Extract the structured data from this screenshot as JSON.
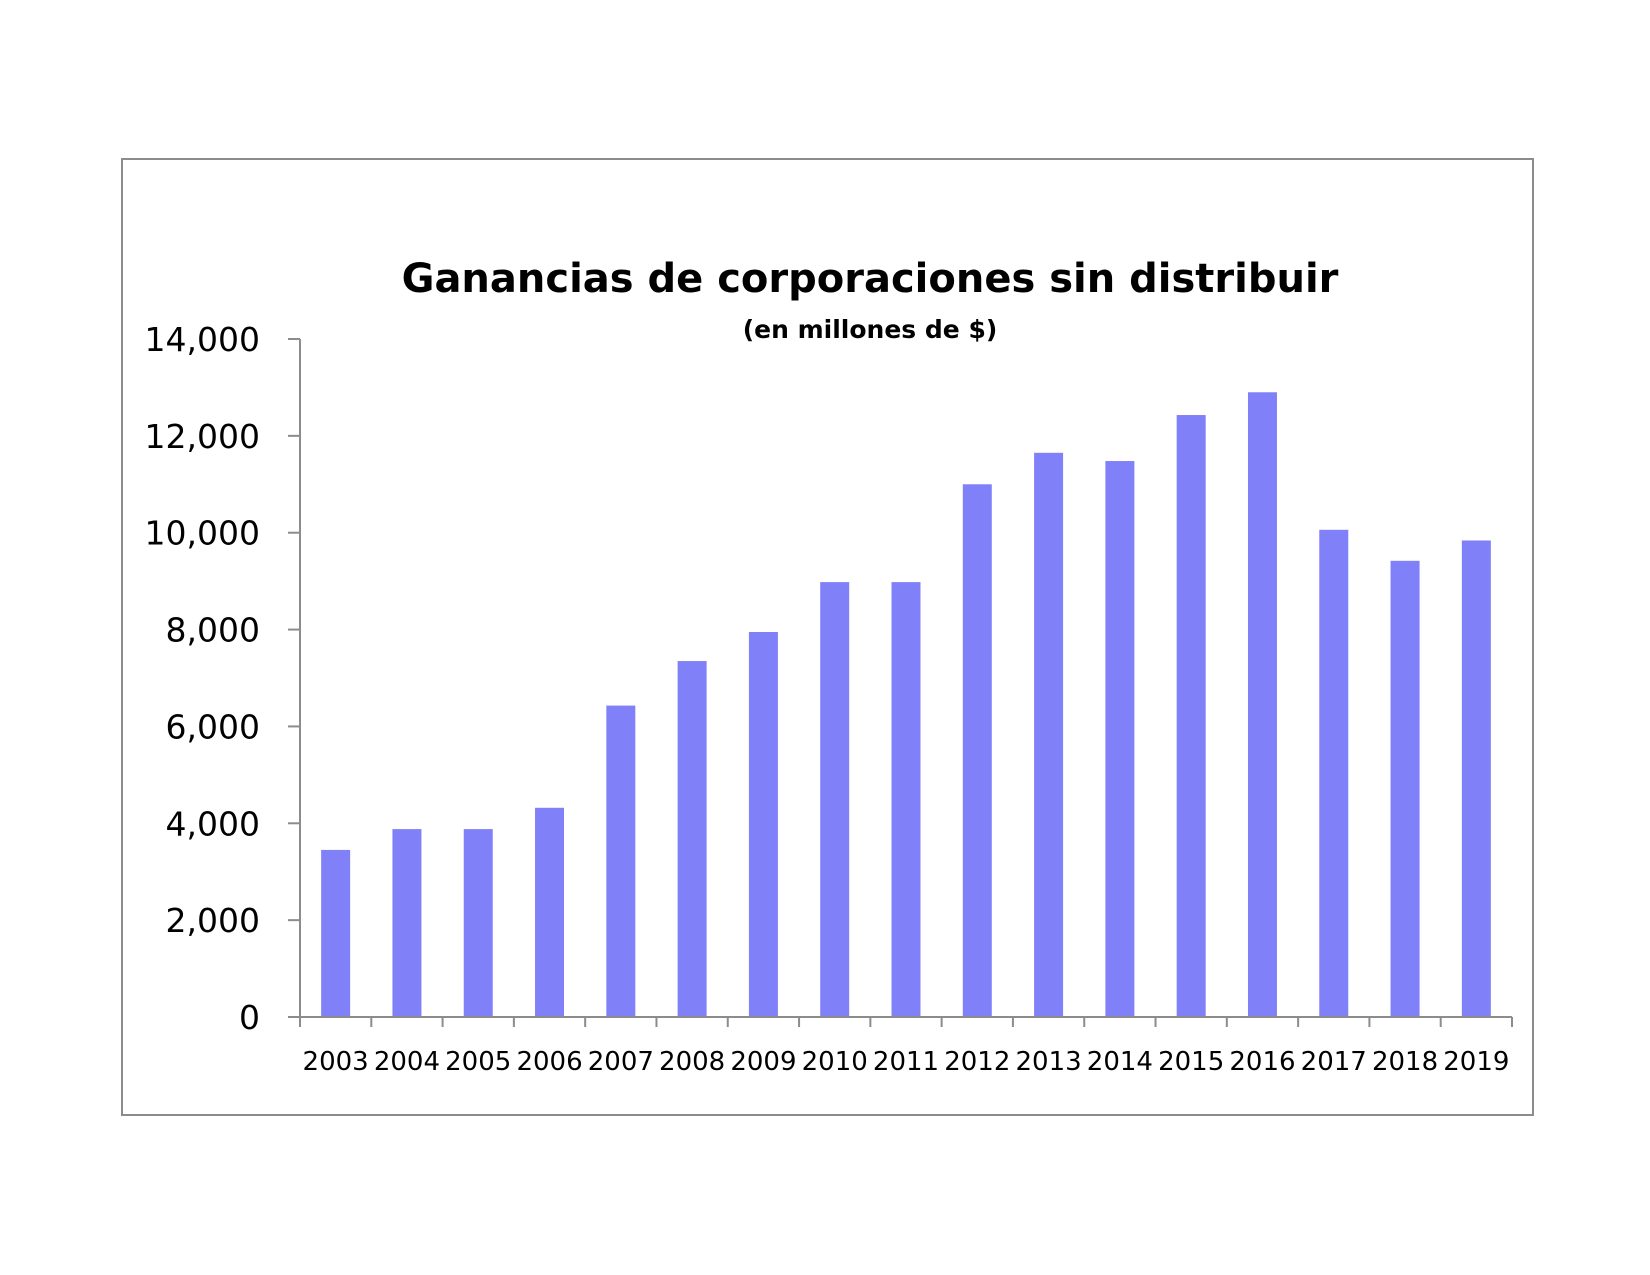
{
  "chart_data": {
    "type": "bar",
    "title": "Ganancias de corporaciones sin distribuir",
    "subtitle": "(en millones de $)",
    "xlabel": "",
    "ylabel": "",
    "categories": [
      "2003",
      "2004",
      "2005",
      "2006",
      "2007",
      "2008",
      "2009",
      "2010",
      "2011",
      "2012",
      "2013",
      "2014",
      "2015",
      "2016",
      "2017",
      "2018",
      "2019"
    ],
    "values": [
      3450,
      3880,
      3880,
      4320,
      6430,
      7350,
      7950,
      8980,
      8980,
      11000,
      11650,
      11480,
      12430,
      12900,
      10060,
      9420,
      9840
    ],
    "ylim": [
      0,
      14000
    ],
    "yticks": [
      0,
      2000,
      4000,
      6000,
      8000,
      10000,
      12000,
      14000
    ],
    "ytick_labels": [
      "0",
      "2,000",
      "4,000",
      "6,000",
      "8,000",
      "10,000",
      "12,000",
      "14,000"
    ],
    "grid": false,
    "legend": "none",
    "bar_color": "#8080f8",
    "axis_color": "#8c8c8c"
  }
}
